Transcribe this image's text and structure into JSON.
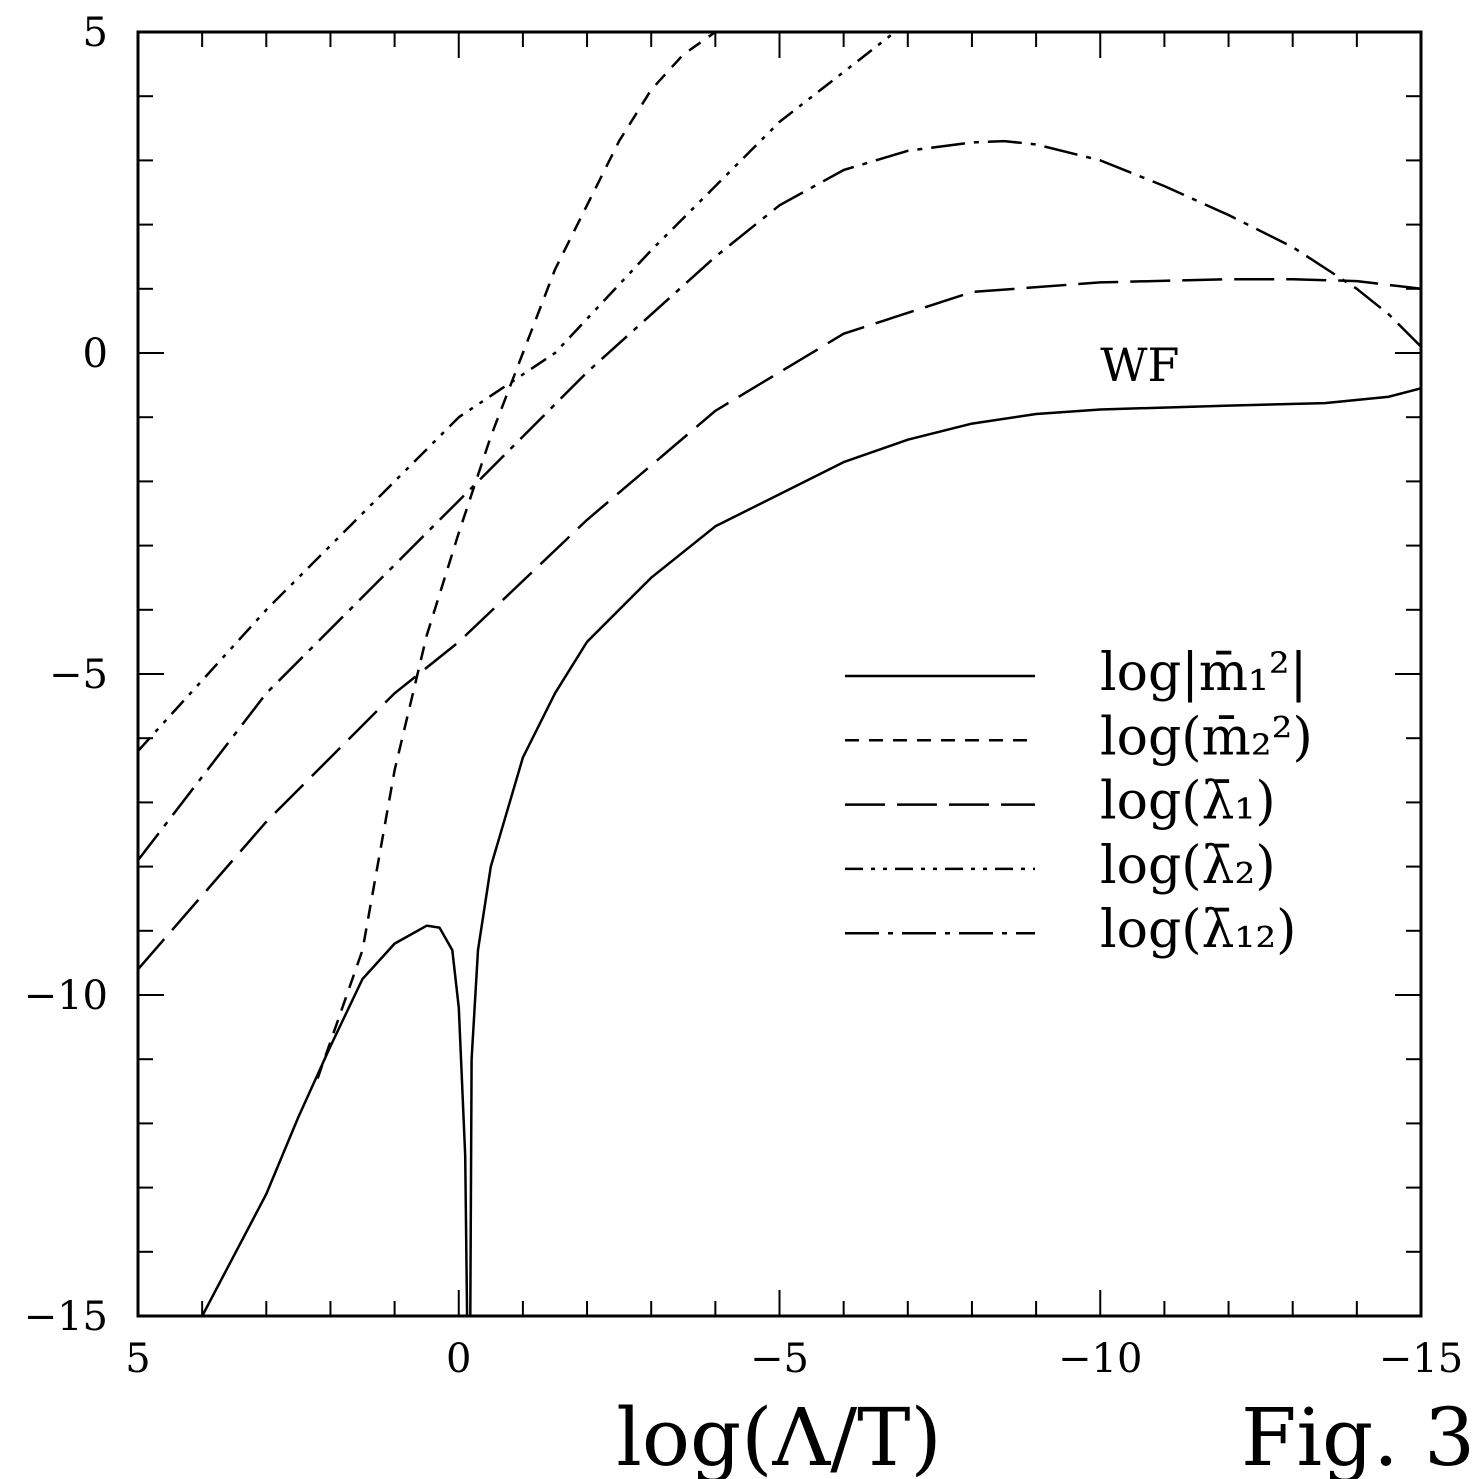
{
  "chart_data": {
    "type": "line",
    "title": "",
    "xlabel": "log(Λ/T)",
    "ylabel": "",
    "xlim": [
      5,
      -15
    ],
    "ylim": [
      -15,
      5
    ],
    "x_reversed": true,
    "grid": false,
    "legend_placement": "lower-right",
    "x_tick_labels": [
      "5",
      "0",
      "−5",
      "−10",
      "−15"
    ],
    "y_tick_labels": [
      "5",
      "0",
      "−5",
      "−10",
      "−15"
    ],
    "figure_label": "Fig. 3",
    "annotations": [
      {
        "text": "WF",
        "x": -10.0,
        "y": 0.0
      }
    ],
    "series": [
      {
        "name": "log|m̄₁²|",
        "style": "solid",
        "segments": [
          [
            [
              4.0,
              -15.0
            ],
            [
              3.0,
              -13.1
            ],
            [
              2.5,
              -11.9
            ],
            [
              2.0,
              -10.8
            ],
            [
              1.5,
              -9.75
            ],
            [
              1.0,
              -9.2
            ],
            [
              0.5,
              -8.92
            ],
            [
              0.3,
              -8.95
            ],
            [
              0.1,
              -9.3
            ],
            [
              0.0,
              -10.2
            ],
            [
              -0.1,
              -12.5
            ],
            [
              -0.13,
              -15.0
            ]
          ],
          [
            [
              -0.18,
              -15.0
            ],
            [
              -0.2,
              -11.0
            ],
            [
              -0.3,
              -9.3
            ],
            [
              -0.5,
              -8.0
            ],
            [
              -1.0,
              -6.3
            ],
            [
              -1.5,
              -5.3
            ],
            [
              -2.0,
              -4.5
            ],
            [
              -3.0,
              -3.5
            ],
            [
              -4.0,
              -2.7
            ],
            [
              -5.0,
              -2.2
            ],
            [
              -6.0,
              -1.7
            ],
            [
              -7.0,
              -1.35
            ],
            [
              -8.0,
              -1.1
            ],
            [
              -9.0,
              -0.95
            ],
            [
              -10.0,
              -0.88
            ],
            [
              -12.0,
              -0.82
            ],
            [
              -13.5,
              -0.78
            ],
            [
              -14.5,
              -0.68
            ],
            [
              -15.0,
              -0.55
            ]
          ]
        ]
      },
      {
        "name": "log(m̄₂²)",
        "style": "dashed",
        "segments": [
          [
            [
              2.2,
              -11.3
            ],
            [
              1.5,
              -9.3
            ],
            [
              1.0,
              -6.5
            ],
            [
              0.5,
              -4.4
            ],
            [
              0.0,
              -2.8
            ],
            [
              -0.5,
              -1.3
            ],
            [
              -1.0,
              0.0
            ],
            [
              -1.5,
              1.3
            ],
            [
              -2.0,
              2.3
            ],
            [
              -2.5,
              3.3
            ],
            [
              -3.0,
              4.1
            ],
            [
              -3.5,
              4.65
            ],
            [
              -4.0,
              5.0
            ]
          ]
        ]
      },
      {
        "name": "log(λ̄₁)",
        "style": "longdash",
        "segments": [
          [
            [
              5.0,
              -9.6
            ],
            [
              3.0,
              -7.3
            ],
            [
              1.0,
              -5.3
            ],
            [
              0.0,
              -4.5
            ],
            [
              -2.0,
              -2.6
            ],
            [
              -4.0,
              -0.9
            ],
            [
              -5.0,
              -0.3
            ],
            [
              -6.0,
              0.3
            ],
            [
              -8.0,
              0.95
            ],
            [
              -10.0,
              1.1
            ],
            [
              -12.0,
              1.15
            ],
            [
              -13.0,
              1.15
            ],
            [
              -14.0,
              1.12
            ],
            [
              -15.0,
              1.0
            ]
          ]
        ]
      },
      {
        "name": "log(λ̄₂)",
        "style": "dashdotdot",
        "segments": [
          [
            [
              5.0,
              -6.2
            ],
            [
              3.0,
              -4.0
            ],
            [
              1.0,
              -2.0
            ],
            [
              0.0,
              -1.0
            ],
            [
              -1.5,
              0.0
            ],
            [
              -3.0,
              1.6
            ],
            [
              -5.0,
              3.6
            ],
            [
              -6.8,
              5.0
            ]
          ]
        ]
      },
      {
        "name": "log(λ̄₁₂)",
        "style": "dashdot",
        "segments": [
          [
            [
              5.0,
              -7.9
            ],
            [
              3.0,
              -5.3
            ],
            [
              1.0,
              -3.3
            ],
            [
              0.0,
              -2.3
            ],
            [
              -2.0,
              -0.3
            ],
            [
              -4.0,
              1.5
            ],
            [
              -5.0,
              2.3
            ],
            [
              -6.0,
              2.85
            ],
            [
              -7.0,
              3.15
            ],
            [
              -8.0,
              3.28
            ],
            [
              -8.5,
              3.3
            ],
            [
              -9.0,
              3.25
            ],
            [
              -10.0,
              3.0
            ],
            [
              -11.0,
              2.6
            ],
            [
              -12.0,
              2.15
            ],
            [
              -13.0,
              1.65
            ],
            [
              -14.0,
              1.0
            ],
            [
              -14.5,
              0.6
            ],
            [
              -15.0,
              0.1
            ]
          ]
        ]
      }
    ]
  }
}
